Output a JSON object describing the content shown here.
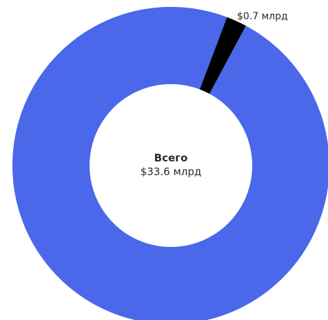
{
  "chart_data": {
    "type": "pie",
    "slices": [
      {
        "value": 32.9,
        "color": "#4b67ea"
      },
      {
        "value": 0.7,
        "label": "$0.7 млрд",
        "color": "#000000"
      }
    ],
    "center": {
      "title": "Всего",
      "value": "$33.6 млрд"
    }
  }
}
